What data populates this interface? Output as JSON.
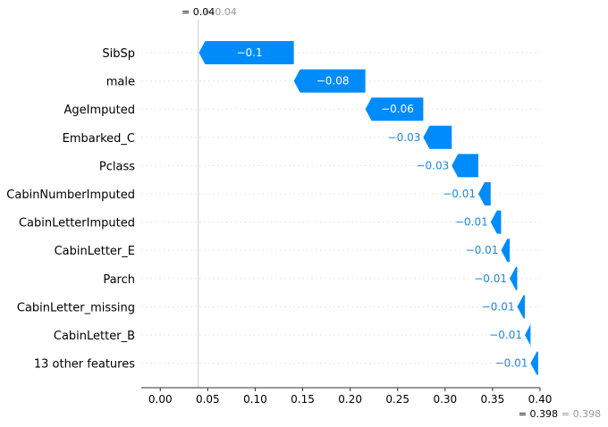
{
  "chart_data": {
    "type": "waterfall",
    "title": "",
    "xlabel": "",
    "ylabel": "",
    "xlim": [
      -0.02,
      0.4
    ],
    "x_ticks": [
      0.0,
      0.05,
      0.1,
      0.15,
      0.2,
      0.25,
      0.3,
      0.35,
      0.4
    ],
    "x_tick_labels": [
      "0.00",
      "0.05",
      "0.10",
      "0.15",
      "0.20",
      "0.25",
      "0.30",
      "0.35",
      "0.40"
    ],
    "base_value": 0.04,
    "base_label_main": "= 0.04",
    "base_label_ghost": "= 0.04",
    "final_value": 0.398,
    "final_label_main": "= 0.398",
    "final_label_ghost": "= 0.398",
    "colors": {
      "negative": "#008bfb",
      "negative_text": "#1e88e5"
    },
    "features": [
      {
        "name": "SibSp",
        "value": -0.1,
        "label": "−0.1"
      },
      {
        "name": "male",
        "value": -0.08,
        "label": "−0.08"
      },
      {
        "name": "AgeImputed",
        "value": -0.06,
        "label": "−0.06"
      },
      {
        "name": "Embarked_C",
        "value": -0.03,
        "label": "−0.03"
      },
      {
        "name": "Pclass",
        "value": -0.03,
        "label": "−0.03"
      },
      {
        "name": "CabinNumberImputed",
        "value": -0.01,
        "label": "−0.01"
      },
      {
        "name": "CabinLetterImputed",
        "value": -0.01,
        "label": "−0.01"
      },
      {
        "name": "CabinLetter_E",
        "value": -0.01,
        "label": "−0.01"
      },
      {
        "name": "Parch",
        "value": -0.01,
        "label": "−0.01"
      },
      {
        "name": "CabinLetter_missing",
        "value": -0.01,
        "label": "−0.01"
      },
      {
        "name": "CabinLetter_B",
        "value": -0.01,
        "label": "−0.01"
      },
      {
        "name": "13 other features",
        "value": -0.01,
        "label": "−0.01"
      }
    ],
    "bar_edges": [
      [
        0.1407,
        0.0407
      ],
      [
        0.216,
        0.1407
      ],
      [
        0.277,
        0.216
      ],
      [
        0.307,
        0.277
      ],
      [
        0.335,
        0.307
      ],
      [
        0.348,
        0.335
      ],
      [
        0.359,
        0.348
      ],
      [
        0.368,
        0.359
      ],
      [
        0.376,
        0.368
      ],
      [
        0.384,
        0.376
      ],
      [
        0.39,
        0.384
      ],
      [
        0.398,
        0.39
      ]
    ]
  }
}
